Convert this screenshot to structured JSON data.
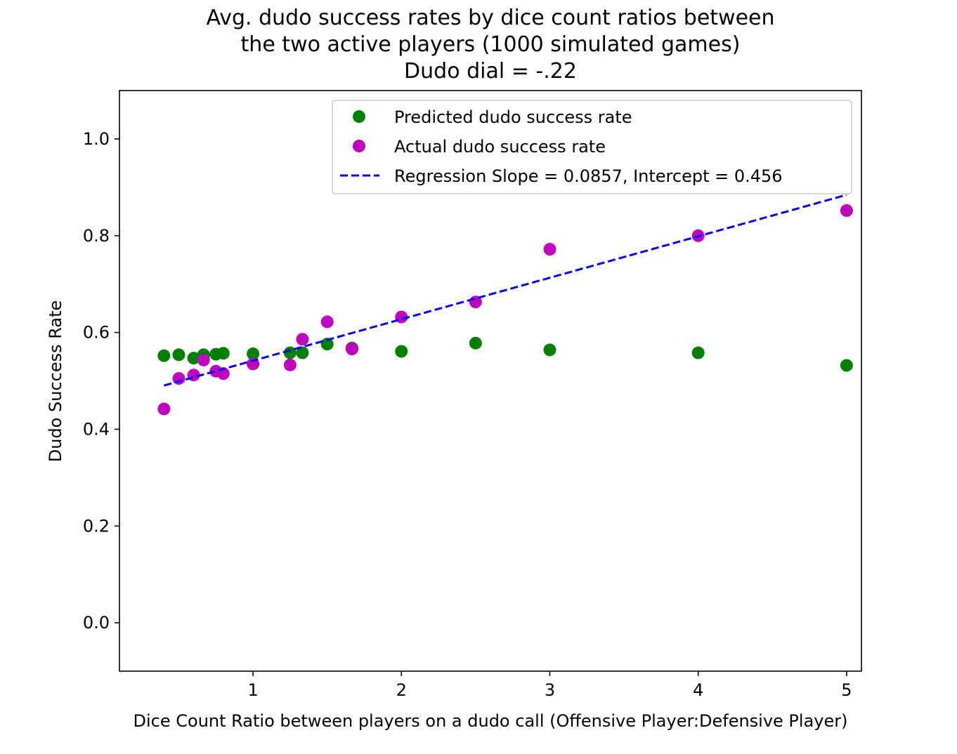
{
  "chart_data": {
    "type": "scatter",
    "title_lines": [
      "Avg. dudo success rates by dice count ratios between",
      "the two active players (1000 simulated games)",
      "Dudo dial = -.22"
    ],
    "xlabel": "Dice Count Ratio between players on a dudo call (Offensive Player:Defensive Player)",
    "ylabel": "Dudo Success Rate",
    "xlim": [
      0.1,
      5.1
    ],
    "ylim": [
      -0.1,
      1.1
    ],
    "x_ticks": [
      1,
      2,
      3,
      4,
      5
    ],
    "x_tick_labels": [
      "1",
      "2",
      "3",
      "4",
      "5"
    ],
    "y_ticks": [
      0.0,
      0.2,
      0.4,
      0.6,
      0.8,
      1.0
    ],
    "y_tick_labels": [
      "0.0",
      "0.2",
      "0.4",
      "0.6",
      "0.8",
      "1.0"
    ],
    "grid": false,
    "legend_position": "top-right",
    "series": [
      {
        "name": "Predicted dudo success rate",
        "kind": "scatter",
        "color": "#008000",
        "x": [
          0.4,
          0.5,
          0.6,
          0.667,
          0.75,
          0.8,
          1.0,
          1.25,
          1.333,
          1.5,
          1.667,
          2.0,
          2.5,
          3.0,
          4.0,
          5.0
        ],
        "y": [
          0.552,
          0.554,
          0.547,
          0.554,
          0.555,
          0.557,
          0.556,
          0.558,
          0.558,
          0.576,
          0.568,
          0.561,
          0.578,
          0.564,
          0.558,
          0.532
        ]
      },
      {
        "name": "Actual dudo success rate",
        "kind": "scatter",
        "color": "#bf00bf",
        "x": [
          0.4,
          0.5,
          0.6,
          0.667,
          0.75,
          0.8,
          1.0,
          1.25,
          1.333,
          1.5,
          1.667,
          2.0,
          2.5,
          3.0,
          4.0,
          5.0
        ],
        "y": [
          0.442,
          0.505,
          0.512,
          0.543,
          0.52,
          0.515,
          0.535,
          0.533,
          0.586,
          0.622,
          0.566,
          0.632,
          0.663,
          0.772,
          0.8,
          0.852
        ]
      },
      {
        "name": "Regression Slope = 0.0857, Intercept = 0.456",
        "kind": "line",
        "style": "dashed",
        "color": "#0000ff",
        "slope": 0.0857,
        "intercept": 0.456,
        "x_range": [
          0.4,
          5.0
        ]
      }
    ]
  }
}
